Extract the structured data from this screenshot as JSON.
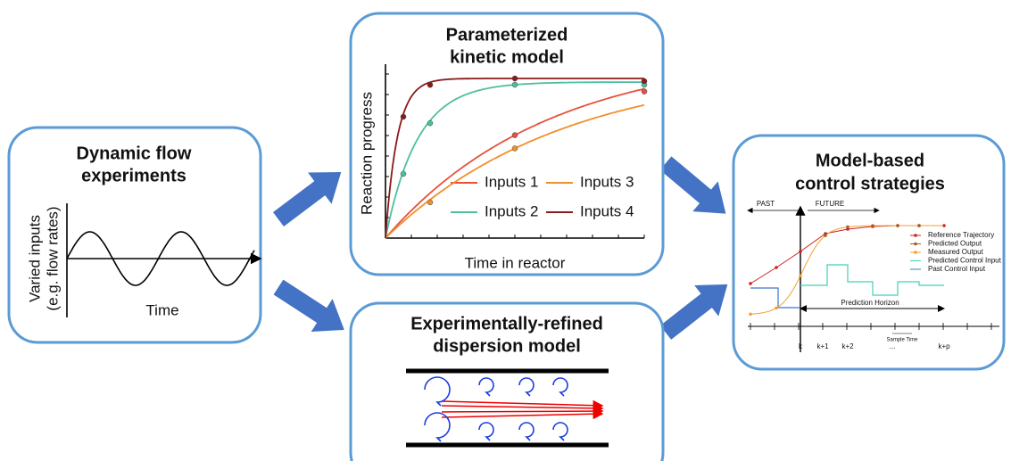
{
  "flow_experiments": {
    "title": [
      "Dynamic flow",
      "experiments"
    ],
    "y_label": [
      "Varied inputs",
      "(e.g. flow rates)"
    ],
    "x_label": "Time"
  },
  "kinetic_model": {
    "title": [
      "Parameterized",
      "kinetic model"
    ],
    "y_label": "Reaction progress",
    "x_label": "Time in reactor",
    "legend": [
      "Inputs 1",
      "Inputs 2",
      "Inputs 3",
      "Inputs 4"
    ]
  },
  "dispersion_model": {
    "title": [
      "Experimentally-refined",
      "dispersion model"
    ]
  },
  "control": {
    "title": [
      "Model-based",
      "control strategies"
    ],
    "past": "PAST",
    "future": "FUTURE",
    "legend": [
      "Reference Trajectory",
      "Predicted Output",
      "Measured Output",
      "Predicted Control Input",
      "Past Control Input"
    ],
    "horizon": "Prediction Horizon",
    "sample_time": "Sample Time",
    "ticks": [
      "k",
      "k+1",
      "k+2",
      "...",
      "k+p"
    ]
  }
}
